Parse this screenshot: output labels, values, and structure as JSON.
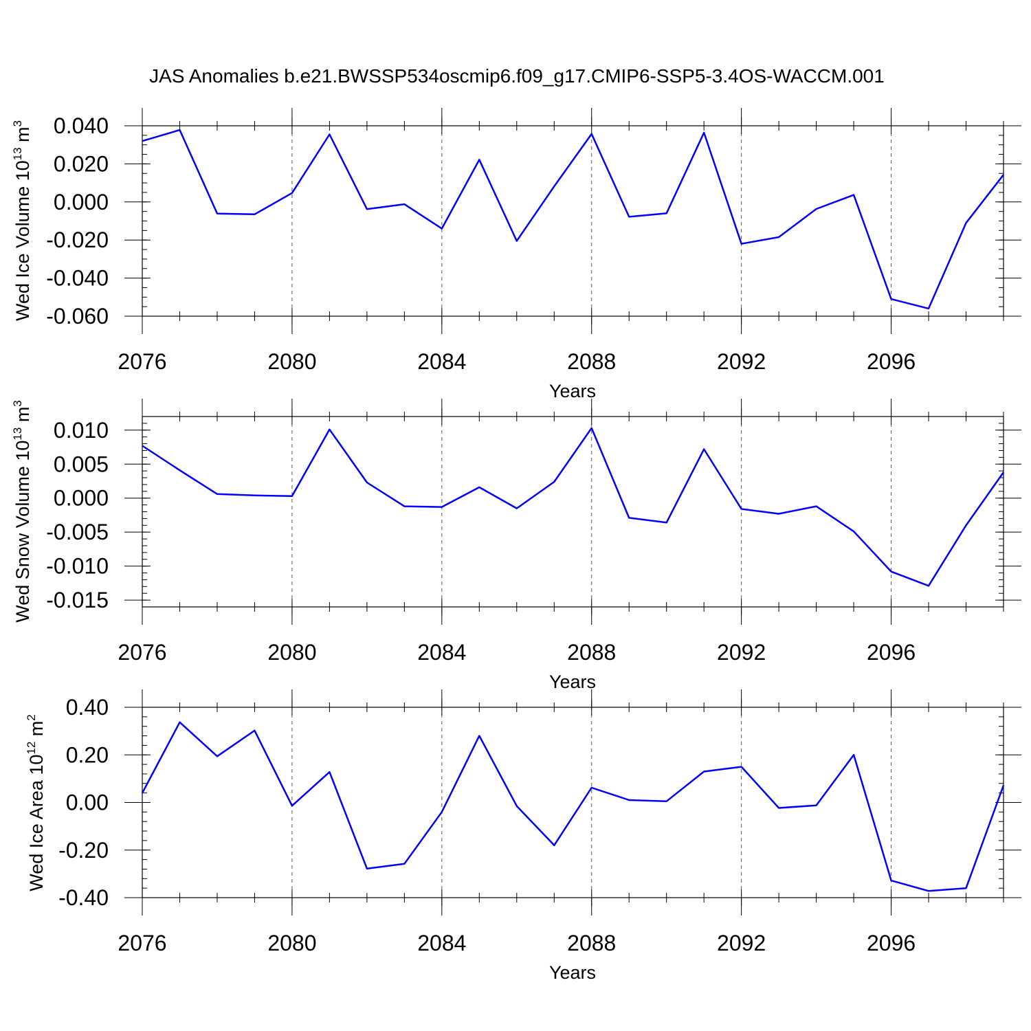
{
  "title": "JAS Anomalies b.e21.BWSSP534oscmip6.f09_g17.CMIP6-SSP5-3.4OS-WACCM.001",
  "chart_data": [
    {
      "type": "line",
      "ylabel": "Wed Ice Volume 10",
      "ylabel_exp": "13",
      "ylabel_unit": " m",
      "ylabel_unit_exp": "3",
      "xlabel": "Years",
      "xlim": [
        2076,
        2099
      ],
      "ylim": [
        -0.06,
        0.04
      ],
      "xticks": [
        2076,
        2080,
        2084,
        2088,
        2092,
        2096
      ],
      "yticks": [
        "0.040",
        "0.020",
        "0.000",
        "-0.020",
        "-0.040",
        "-0.060"
      ],
      "grid": "dashed vertical at major x ticks",
      "x": [
        2076,
        2077,
        2078,
        2079,
        2080,
        2081,
        2082,
        2083,
        2084,
        2085,
        2086,
        2087,
        2088,
        2089,
        2090,
        2091,
        2092,
        2093,
        2094,
        2095,
        2096,
        2097,
        2098,
        2099
      ],
      "values": [
        0.032,
        0.0378,
        -0.0061,
        -0.0065,
        0.0047,
        0.0355,
        -0.0038,
        -0.0012,
        -0.014,
        0.0222,
        -0.0205,
        0.0082,
        0.0357,
        -0.0078,
        -0.006,
        0.0364,
        -0.022,
        -0.0185,
        -0.0037,
        0.0037,
        -0.051,
        -0.056,
        -0.011,
        0.0143
      ]
    },
    {
      "type": "line",
      "ylabel": "Wed Snow Volume 10",
      "ylabel_exp": "13",
      "ylabel_unit": " m",
      "ylabel_unit_exp": "3",
      "xlabel": "Years",
      "xlim": [
        2076,
        2099
      ],
      "ylim": [
        -0.016,
        0.012
      ],
      "xticks": [
        2076,
        2080,
        2084,
        2088,
        2092,
        2096
      ],
      "yticks": [
        "0.010",
        "0.005",
        "0.000",
        "-0.005",
        "-0.010",
        "-0.015"
      ],
      "grid": "dashed vertical at major x ticks",
      "x": [
        2076,
        2077,
        2078,
        2079,
        2080,
        2081,
        2082,
        2083,
        2084,
        2085,
        2086,
        2087,
        2088,
        2089,
        2090,
        2091,
        2092,
        2093,
        2094,
        2095,
        2096,
        2097,
        2098,
        2099
      ],
      "values": [
        0.0077,
        0.0041,
        0.0006,
        0.0004,
        0.0003,
        0.0101,
        0.0023,
        -0.0012,
        -0.0013,
        0.0016,
        -0.0015,
        0.0024,
        0.0103,
        -0.0029,
        -0.0036,
        0.0072,
        -0.0016,
        -0.0023,
        -0.0012,
        -0.0049,
        -0.0108,
        -0.0129,
        -0.004,
        0.0038
      ]
    },
    {
      "type": "line",
      "ylabel": "Wed Ice Area 10",
      "ylabel_exp": "12",
      "ylabel_unit": " m",
      "ylabel_unit_exp": "2",
      "xlabel": "Years",
      "xlim": [
        2076,
        2099
      ],
      "ylim": [
        -0.4,
        0.4
      ],
      "xticks": [
        2076,
        2080,
        2084,
        2088,
        2092,
        2096
      ],
      "yticks": [
        "0.40",
        "0.20",
        "0.00",
        "-0.20",
        "-0.40"
      ],
      "grid": "dashed vertical at major x ticks",
      "x": [
        2076,
        2077,
        2078,
        2079,
        2080,
        2081,
        2082,
        2083,
        2084,
        2085,
        2086,
        2087,
        2088,
        2089,
        2090,
        2091,
        2092,
        2093,
        2094,
        2095,
        2096,
        2097,
        2098,
        2099
      ],
      "values": [
        0.04,
        0.337,
        0.194,
        0.302,
        -0.014,
        0.128,
        -0.278,
        -0.258,
        -0.04,
        0.28,
        -0.015,
        -0.18,
        0.062,
        0.01,
        0.005,
        0.13,
        0.15,
        -0.023,
        -0.012,
        0.2,
        -0.328,
        -0.372,
        -0.36,
        0.072
      ]
    }
  ]
}
